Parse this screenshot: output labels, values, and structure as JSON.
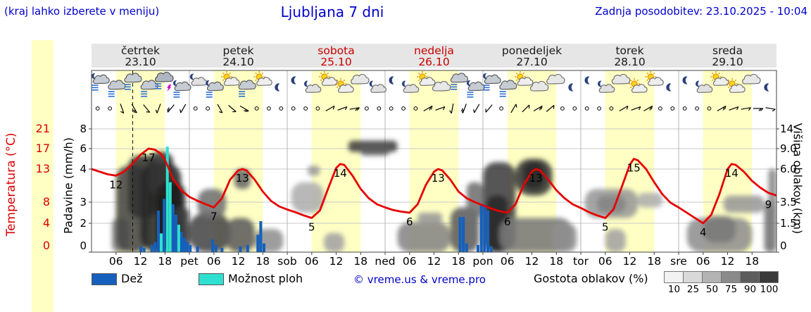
{
  "meta": {
    "note": "(kraj lahko izberete v meniju)",
    "title": "Ljubljana 7 dni",
    "updated": "Zadnja posodobitev: 23.10.2025 - 10:04"
  },
  "axes": {
    "temp_label": "Temperatura (°C)",
    "precip_label": "Padavine (mm/h)",
    "cloud_label": "Višina oblakov (km)",
    "temp_ticks": [
      "21",
      "17",
      "13",
      "8",
      "4",
      "0"
    ],
    "precip_ticks": [
      "8",
      "6",
      "4",
      "3",
      "2",
      "0"
    ],
    "cloud_ticks": [
      "14",
      "9.0",
      "6.0",
      "3.5",
      "1.5",
      "0"
    ]
  },
  "legend": {
    "rain": "Dež",
    "showers": "Možnost ploh",
    "copyright": "© vreme.us & vreme.pro",
    "cloud_density": "Gostota oblakov (%)",
    "density_scale": [
      "10",
      "25",
      "50",
      "75",
      "90",
      "100"
    ],
    "density_colors": [
      "#f2f2f2",
      "#d9d9d9",
      "#b3b3b3",
      "#8a8a8a",
      "#5c5c5c",
      "#3a3a3a"
    ],
    "rain_color": "#1560bd",
    "shower_color": "#2fe0d0",
    "temp_color": "#e60000"
  },
  "chart_data": {
    "type": "meteogram",
    "hours_span": 168,
    "day_start_hour": 6,
    "day_end_hour": 18,
    "now_hour": 10.1,
    "days": [
      {
        "name": "četrtek",
        "date": "23.10",
        "weekend": false
      },
      {
        "name": "petek",
        "date": "24.10",
        "weekend": false
      },
      {
        "name": "sobota",
        "date": "25.10",
        "weekend": true
      },
      {
        "name": "nedelja",
        "date": "26.10",
        "weekend": true
      },
      {
        "name": "ponedeljek",
        "date": "27.10",
        "weekend": false
      },
      {
        "name": "torek",
        "date": "28.10",
        "weekend": false
      },
      {
        "name": "sreda",
        "date": "29.10",
        "weekend": false
      }
    ],
    "xticks": [
      [
        6,
        "06"
      ],
      [
        12,
        "12"
      ],
      [
        18,
        "18"
      ],
      [
        24,
        "pet"
      ],
      [
        30,
        "06"
      ],
      [
        36,
        "12"
      ],
      [
        42,
        "18"
      ],
      [
        48,
        "sob"
      ],
      [
        54,
        "06"
      ],
      [
        60,
        "12"
      ],
      [
        66,
        "18"
      ],
      [
        72,
        "ned"
      ],
      [
        78,
        "06"
      ],
      [
        84,
        "12"
      ],
      [
        90,
        "18"
      ],
      [
        96,
        "pon"
      ],
      [
        102,
        "06"
      ],
      [
        108,
        "12"
      ],
      [
        114,
        "18"
      ],
      [
        120,
        "tor"
      ],
      [
        126,
        "06"
      ],
      [
        132,
        "12"
      ],
      [
        138,
        "18"
      ],
      [
        144,
        "sre"
      ],
      [
        150,
        "06"
      ],
      [
        156,
        "12"
      ],
      [
        162,
        "18"
      ]
    ],
    "temperature": {
      "unit": "°C",
      "series": [
        [
          0,
          13
        ],
        [
          2,
          12.6
        ],
        [
          4,
          12.2
        ],
        [
          6,
          12
        ],
        [
          8,
          12.6
        ],
        [
          10,
          14
        ],
        [
          12,
          15.8
        ],
        [
          14,
          17
        ],
        [
          15.5,
          16.8
        ],
        [
          17,
          16
        ],
        [
          18,
          14.8
        ],
        [
          19,
          13
        ],
        [
          20,
          11.5
        ],
        [
          22,
          9.8
        ],
        [
          24,
          8.8
        ],
        [
          26,
          8.2
        ],
        [
          28,
          7.6
        ],
        [
          30,
          7
        ],
        [
          32,
          8.6
        ],
        [
          34,
          11.4
        ],
        [
          36,
          12.8
        ],
        [
          37,
          13
        ],
        [
          38,
          12.8
        ],
        [
          40,
          11.4
        ],
        [
          42,
          9.6
        ],
        [
          44,
          8.2
        ],
        [
          46,
          7.2
        ],
        [
          48,
          6.6
        ],
        [
          50,
          6.1
        ],
        [
          52,
          5.5
        ],
        [
          54,
          5
        ],
        [
          56,
          6.4
        ],
        [
          58,
          10
        ],
        [
          60,
          13.2
        ],
        [
          61,
          14
        ],
        [
          62,
          13.8
        ],
        [
          64,
          12
        ],
        [
          66,
          10
        ],
        [
          68,
          8.6
        ],
        [
          70,
          7.6
        ],
        [
          72,
          7
        ],
        [
          74,
          6.5
        ],
        [
          76,
          6.2
        ],
        [
          78,
          6
        ],
        [
          80,
          7.6
        ],
        [
          82,
          10.6
        ],
        [
          84,
          12.6
        ],
        [
          85,
          13
        ],
        [
          86,
          12.8
        ],
        [
          88,
          11.4
        ],
        [
          90,
          9.6
        ],
        [
          92,
          8.6
        ],
        [
          94,
          8
        ],
        [
          96,
          7.4
        ],
        [
          98,
          6.8
        ],
        [
          100,
          6.3
        ],
        [
          102,
          6
        ],
        [
          104,
          7.6
        ],
        [
          106,
          10.6
        ],
        [
          108,
          12.6
        ],
        [
          109,
          13
        ],
        [
          110,
          12.8
        ],
        [
          112,
          11.4
        ],
        [
          114,
          9.8
        ],
        [
          116,
          8.6
        ],
        [
          118,
          7.6
        ],
        [
          120,
          6.9
        ],
        [
          122,
          6.1
        ],
        [
          124,
          5.5
        ],
        [
          126,
          5
        ],
        [
          128,
          6.6
        ],
        [
          130,
          10.2
        ],
        [
          132,
          13.8
        ],
        [
          133,
          15
        ],
        [
          134,
          14.7
        ],
        [
          136,
          13
        ],
        [
          138,
          11
        ],
        [
          140,
          9.2
        ],
        [
          142,
          7.9
        ],
        [
          144,
          7
        ],
        [
          146,
          6
        ],
        [
          148,
          5
        ],
        [
          150,
          4
        ],
        [
          152,
          5.6
        ],
        [
          154,
          9.2
        ],
        [
          156,
          13
        ],
        [
          157,
          14
        ],
        [
          158,
          13.8
        ],
        [
          160,
          12.6
        ],
        [
          162,
          11.2
        ],
        [
          164,
          10.2
        ],
        [
          166,
          9.4
        ],
        [
          168,
          9
        ]
      ],
      "labels": [
        [
          6,
          12
        ],
        [
          14,
          17
        ],
        [
          30,
          7
        ],
        [
          37,
          13
        ],
        [
          54,
          5
        ],
        [
          61,
          14
        ],
        [
          78,
          6
        ],
        [
          85,
          13
        ],
        [
          102,
          6
        ],
        [
          109,
          13
        ],
        [
          126,
          5
        ],
        [
          133,
          15
        ],
        [
          150,
          4
        ],
        [
          157,
          14
        ],
        [
          166,
          9
        ]
      ]
    },
    "precipitation": [
      [
        12.1,
        0.4,
        "r"
      ],
      [
        12.9,
        0.3,
        "r"
      ],
      [
        14.8,
        0.5,
        "r"
      ],
      [
        15.6,
        0.7,
        "r"
      ],
      [
        16.4,
        2.6,
        "r"
      ],
      [
        17.1,
        1.3,
        "s"
      ],
      [
        17.8,
        3.1,
        "r"
      ],
      [
        18.6,
        6.2,
        "s"
      ],
      [
        19.3,
        3.6,
        "s"
      ],
      [
        20.0,
        2.9,
        "r"
      ],
      [
        20.7,
        2.4,
        "r"
      ],
      [
        21.4,
        1.9,
        "s"
      ],
      [
        22.1,
        1.4,
        "r"
      ],
      [
        22.8,
        1.0,
        "r"
      ],
      [
        23.5,
        0.7,
        "r"
      ],
      [
        24.2,
        0.5,
        "r"
      ],
      [
        26.0,
        0.4,
        "r"
      ],
      [
        29.7,
        0.9,
        "r"
      ],
      [
        30.5,
        0.5,
        "r"
      ],
      [
        32.0,
        0.3,
        "r"
      ],
      [
        36.5,
        0.4,
        "r"
      ],
      [
        38.3,
        0.5,
        "r"
      ],
      [
        40.8,
        1.2,
        "r"
      ],
      [
        41.5,
        2.1,
        "r"
      ],
      [
        42.3,
        0.6,
        "r"
      ],
      [
        90.4,
        2.3,
        "r"
      ],
      [
        91.2,
        2.3,
        "r"
      ],
      [
        92.0,
        0.6,
        "r"
      ],
      [
        94.8,
        0.5,
        "r"
      ],
      [
        95.6,
        2.9,
        "r"
      ],
      [
        96.4,
        2.9,
        "r"
      ],
      [
        97.2,
        2.6,
        "r"
      ],
      [
        98.0,
        0.4,
        "r"
      ]
    ],
    "clouds": [
      [
        5,
        9,
        0,
        2,
        55
      ],
      [
        6,
        14,
        0,
        6.5,
        80
      ],
      [
        9,
        16,
        2,
        8,
        90
      ],
      [
        12,
        22,
        0,
        7,
        95
      ],
      [
        14,
        20,
        4,
        8.5,
        90
      ],
      [
        16,
        23,
        0,
        5,
        100
      ],
      [
        20,
        24,
        0,
        3,
        85
      ],
      [
        24,
        34,
        0,
        2.5,
        80
      ],
      [
        26,
        33,
        2,
        4.5,
        60
      ],
      [
        33,
        40,
        0,
        2,
        70
      ],
      [
        35,
        39,
        4.5,
        6,
        65
      ],
      [
        40,
        47,
        0,
        1.2,
        45
      ],
      [
        49,
        57,
        2.5,
        5,
        30
      ],
      [
        53,
        56,
        5.5,
        6.5,
        40
      ],
      [
        57,
        62,
        0,
        1,
        35
      ],
      [
        63,
        75,
        8.5,
        11,
        85
      ],
      [
        66,
        73,
        8,
        9.5,
        70
      ],
      [
        75,
        88,
        0,
        1.6,
        50
      ],
      [
        80,
        86,
        1.5,
        2.5,
        40
      ],
      [
        88,
        95,
        0,
        3,
        70
      ],
      [
        92,
        96,
        2,
        5,
        60
      ],
      [
        96,
        104,
        0,
        7,
        85
      ],
      [
        97,
        102,
        0,
        4,
        95
      ],
      [
        104,
        113,
        4,
        7.5,
        88
      ],
      [
        106,
        111,
        4.5,
        7,
        95
      ],
      [
        100,
        118,
        0,
        2,
        55
      ],
      [
        113,
        119,
        0,
        1.5,
        45
      ],
      [
        121,
        134,
        2,
        4.5,
        40
      ],
      [
        124,
        131,
        2.5,
        4,
        50
      ],
      [
        126,
        131,
        0,
        1.2,
        35
      ],
      [
        134,
        140,
        3,
        4.2,
        30
      ],
      [
        146,
        162,
        0,
        2,
        45
      ],
      [
        150,
        158,
        0.5,
        2.2,
        55
      ],
      [
        155,
        165,
        2.5,
        4,
        40
      ],
      [
        165,
        168,
        0,
        3.5,
        60
      ],
      [
        166,
        168,
        3,
        6,
        50
      ]
    ],
    "icons": [
      [
        "night-rain",
        "rain",
        "rain",
        "rain",
        "thunder",
        "night-rain"
      ],
      [
        "night-cloud",
        "night-rain",
        "sun-cloud",
        "rain",
        "sun-cloud",
        "moon"
      ],
      [
        "moon",
        "night-cloud",
        "sun-cloud",
        "sun-cloud",
        "cloud",
        "night-cloud"
      ],
      [
        "moon",
        "night-cloud",
        "sun-cloud",
        "cloud",
        "rain",
        "night-rain"
      ],
      [
        "night-rain",
        "rain",
        "sun-cloud",
        "cloud",
        "cloud",
        "moon"
      ],
      [
        "moon",
        "night-cloud",
        "cloud",
        "sun-cloud",
        "sun-cloud",
        "moon"
      ],
      [
        "moon",
        "night-cloud",
        "sun-cloud",
        "sun-cloud",
        "cloud",
        "moon"
      ]
    ],
    "wind": [
      [
        1.5,
        null
      ],
      [
        4.5,
        null
      ],
      [
        7.5,
        160
      ],
      [
        10.5,
        150
      ],
      [
        13.5,
        140
      ],
      [
        16.5,
        200
      ],
      [
        19.5,
        220
      ],
      [
        22.5,
        210
      ],
      [
        25.5,
        null
      ],
      [
        28.5,
        null
      ],
      [
        31.5,
        150
      ],
      [
        34.5,
        130
      ],
      [
        37.5,
        120
      ],
      [
        40.5,
        null
      ],
      [
        43.5,
        null
      ],
      [
        46.5,
        null
      ],
      [
        49.5,
        null
      ],
      [
        52.5,
        null
      ],
      [
        55.5,
        null
      ],
      [
        58.5,
        60
      ],
      [
        61.5,
        70
      ],
      [
        64.5,
        80
      ],
      [
        67.5,
        null
      ],
      [
        70.5,
        null
      ],
      [
        73.5,
        null
      ],
      [
        76.5,
        null
      ],
      [
        79.5,
        null
      ],
      [
        82.5,
        60
      ],
      [
        85.5,
        70
      ],
      [
        88.5,
        190
      ],
      [
        91.5,
        200
      ],
      [
        94.5,
        210
      ],
      [
        97.5,
        220
      ],
      [
        100.5,
        null
      ],
      [
        103.5,
        30
      ],
      [
        106.5,
        45
      ],
      [
        109.5,
        60
      ],
      [
        112.5,
        50
      ],
      [
        115.5,
        null
      ],
      [
        118.5,
        null
      ],
      [
        121.5,
        null
      ],
      [
        124.5,
        null
      ],
      [
        127.5,
        null
      ],
      [
        130.5,
        60
      ],
      [
        133.5,
        70
      ],
      [
        136.5,
        60
      ],
      [
        139.5,
        null
      ],
      [
        142.5,
        null
      ],
      [
        145.5,
        null
      ],
      [
        148.5,
        null
      ],
      [
        151.5,
        null
      ],
      [
        154.5,
        60
      ],
      [
        157.5,
        70
      ],
      [
        160.5,
        80
      ],
      [
        163.5,
        90
      ],
      [
        166.5,
        100
      ]
    ]
  }
}
